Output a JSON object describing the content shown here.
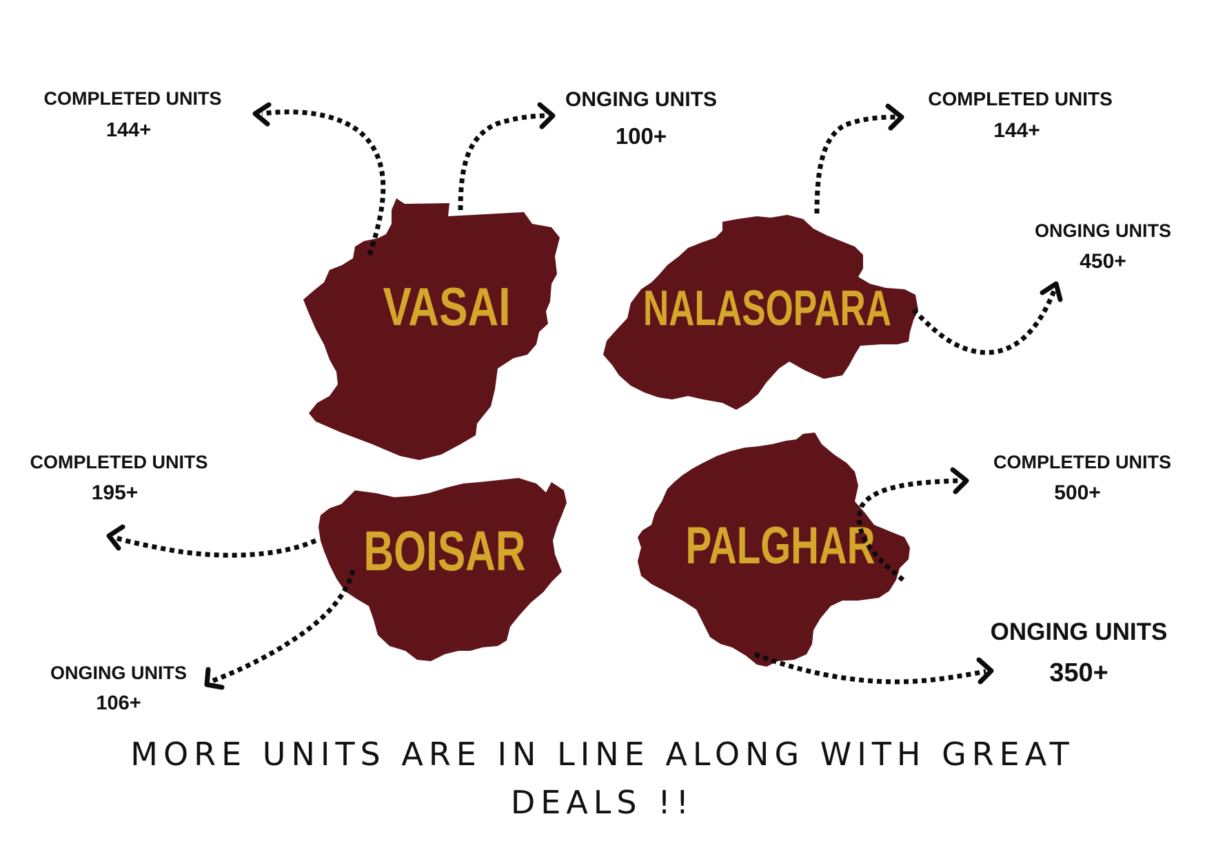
{
  "colors": {
    "region_fill": "#5e1418",
    "region_label": "#d4a72c",
    "text": "#111111",
    "arrow": "#0b0b0b"
  },
  "regions": {
    "vasai": {
      "name": "VASAI",
      "completed": {
        "label": "COMPLETED UNITS",
        "value": "144+"
      },
      "ongoing": {
        "label": "ONGING UNITS",
        "value": "100+"
      }
    },
    "nalasopara": {
      "name": "NALASOPARA",
      "completed": {
        "label": "COMPLETED UNITS",
        "value": "144+"
      },
      "ongoing": {
        "label": "ONGING UNITS",
        "value": "450+"
      }
    },
    "boisar": {
      "name": "BOISAR",
      "completed": {
        "label": "COMPLETED UNITS",
        "value": "195+"
      },
      "ongoing": {
        "label": "ONGING UNITS",
        "value": "106+"
      }
    },
    "palghar": {
      "name": "PALGHAR",
      "completed": {
        "label": "COMPLETED UNITS",
        "value": "500+"
      },
      "ongoing": {
        "label": "ONGING UNITS",
        "value": "350+"
      }
    }
  },
  "footer": {
    "line1": "MORE UNITS ARE IN LINE ALONG WITH GREAT",
    "line2": "DEALS !!"
  }
}
